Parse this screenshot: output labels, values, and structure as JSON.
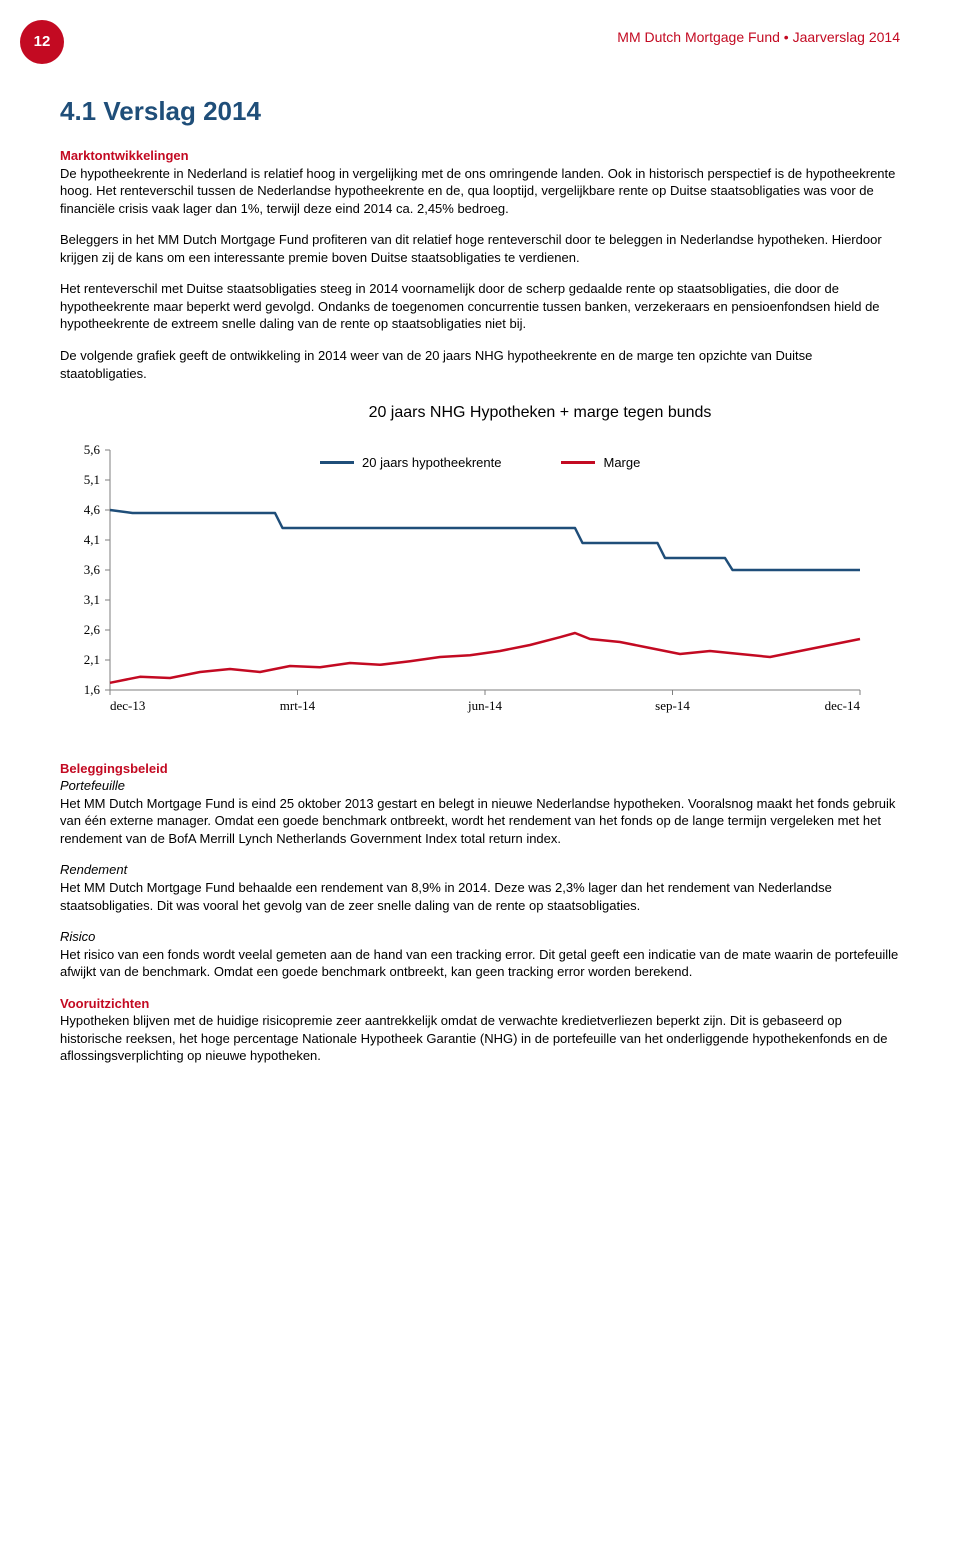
{
  "header": {
    "page_number": "12",
    "running_title": "MM Dutch Mortgage Fund • Jaarverslag 2014"
  },
  "title": "4.1    Verslag 2014",
  "section1": {
    "heading": "Marktontwikkelingen",
    "p1": "De hypotheekrente in Nederland is relatief hoog in vergelijking met de ons omringende landen. Ook in historisch perspectief is de hypotheekrente hoog. Het renteverschil tussen de Nederlandse hypotheekrente en de, qua looptijd, vergelijkbare rente op Duitse staatsobligaties was voor de financiële crisis vaak lager dan 1%, terwijl deze eind 2014 ca. 2,45% bedroeg.",
    "p2": "Beleggers in het MM Dutch Mortgage Fund profiteren van dit relatief hoge renteverschil door te beleggen in Nederlandse hypotheken. Hierdoor krijgen zij de kans om een interessante premie boven Duitse staatsobligaties te verdienen.",
    "p3": "Het renteverschil met Duitse staatsobligaties steeg in 2014 voornamelijk door de scherp gedaalde rente op staatsobligaties, die door de hypotheekrente maar beperkt werd gevolgd. Ondanks de toegenomen concurrentie tussen banken, verzekeraars en pensioenfondsen hield de hypotheekrente de extreem snelle daling van de rente op staatsobligaties niet bij.",
    "p4": "De volgende grafiek geeft de ontwikkeling in 2014 weer van de 20 jaars NHG hypotheekrente en de marge ten opzichte van Duitse staatobligaties."
  },
  "chart": {
    "title": "20 jaars NHG Hypotheken + marge tegen bunds",
    "type": "line",
    "legend_series1": "20 jaars hypotheekrente",
    "legend_series2": "Marge",
    "series1_color": "#1f4e79",
    "series2_color": "#c30a22",
    "axis_color": "#7f7f7f",
    "tick_font_color": "#000000",
    "background_color": "#ffffff",
    "line_width": 2.5,
    "ylim": [
      1.6,
      5.6
    ],
    "ytick_step": 0.5,
    "yticks": [
      "5,6",
      "5,1",
      "4,6",
      "4,1",
      "3,6",
      "3,1",
      "2,6",
      "2,1",
      "1,6"
    ],
    "xticks": [
      "dec-13",
      "mrt-14",
      "jun-14",
      "sep-14",
      "dec-14"
    ],
    "series1_x": [
      0,
      0.03,
      0.22,
      0.23,
      0.26,
      0.62,
      0.63,
      0.73,
      0.74,
      0.82,
      0.83,
      1.0
    ],
    "series1_y": [
      4.6,
      4.55,
      4.55,
      4.3,
      4.3,
      4.3,
      4.05,
      4.05,
      3.8,
      3.8,
      3.6,
      3.6
    ],
    "series2_x": [
      0,
      0.04,
      0.08,
      0.12,
      0.16,
      0.2,
      0.24,
      0.28,
      0.32,
      0.36,
      0.4,
      0.44,
      0.48,
      0.52,
      0.56,
      0.6,
      0.62,
      0.64,
      0.68,
      0.72,
      0.76,
      0.8,
      0.84,
      0.88,
      0.92,
      0.96,
      1.0
    ],
    "series2_y": [
      1.72,
      1.82,
      1.8,
      1.9,
      1.95,
      1.9,
      2.0,
      1.98,
      2.05,
      2.02,
      2.08,
      2.15,
      2.18,
      2.25,
      2.35,
      2.48,
      2.55,
      2.45,
      2.4,
      2.3,
      2.2,
      2.25,
      2.2,
      2.15,
      2.25,
      2.35,
      2.45
    ]
  },
  "section2": {
    "heading": "Beleggingsbeleid",
    "sub1_label": "Portefeuille",
    "sub1_body": "Het MM Dutch Mortgage Fund is eind 25 oktober 2013 gestart en belegt in nieuwe Nederlandse hypotheken. Vooralsnog maakt het fonds gebruik van één externe manager. Omdat een goede benchmark ontbreekt, wordt het rendement van het fonds op de lange termijn vergeleken met het rendement van de BofA Merrill Lynch Netherlands Government Index total return index.",
    "sub2_label": "Rendement",
    "sub2_body": "Het MM Dutch Mortgage Fund behaalde een rendement van 8,9% in 2014. Deze was 2,3% lager dan het rendement van Nederlandse staatsobligaties. Dit was vooral het gevolg van de zeer snelle daling van de rente op staatsobligaties.",
    "sub3_label": "Risico",
    "sub3_body": "Het risico van een fonds wordt veelal gemeten aan de hand van een tracking error. Dit getal geeft een indicatie van de mate waarin de portefeuille afwijkt van de benchmark. Omdat een goede benchmark ontbreekt, kan geen tracking error worden berekend."
  },
  "section3": {
    "heading": "Vooruitzichten",
    "body": "Hypotheken blijven met de huidige risicopremie zeer aantrekkelijk omdat de verwachte kredietverliezen beperkt zijn. Dit is gebaseerd op historische reeksen, het hoge percentage Nationale Hypotheek Garantie (NHG) in de portefeuille van het onderliggende hypothekenfonds en de aflossingsverplichting op nieuwe hypotheken."
  }
}
